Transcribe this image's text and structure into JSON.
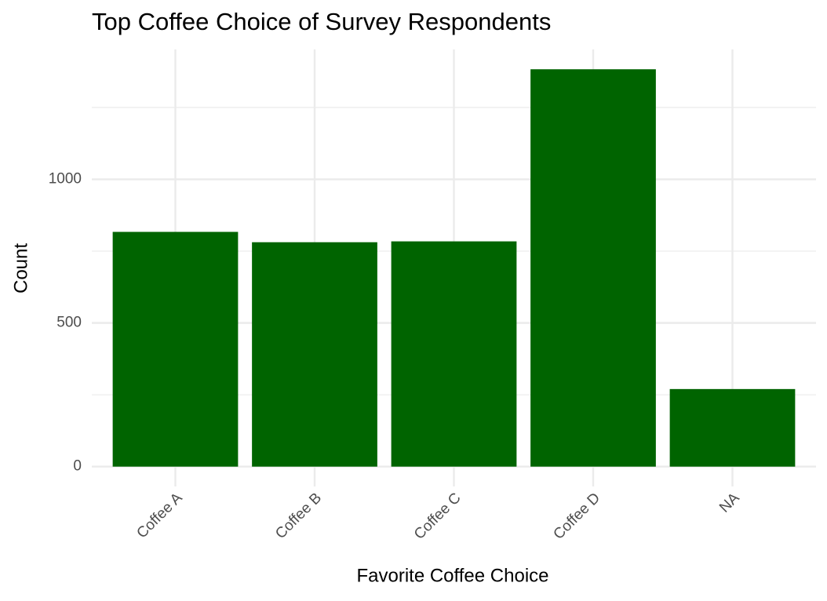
{
  "chart_data": {
    "type": "bar",
    "title": "Top Coffee Choice of Survey Respondents",
    "x_label": "Favorite Coffee Choice",
    "y_label": "Count",
    "categories": [
      "Coffee A",
      "Coffee B",
      "Coffee C",
      "Coffee D",
      "NA"
    ],
    "values": [
      817,
      781,
      784,
      1383,
      270
    ],
    "color": "#006400",
    "ylim": [
      -69,
      1452
    ],
    "yticks": [
      0,
      500,
      1000
    ],
    "minor_yticks": [
      250,
      750,
      1250
    ],
    "grid": true
  }
}
